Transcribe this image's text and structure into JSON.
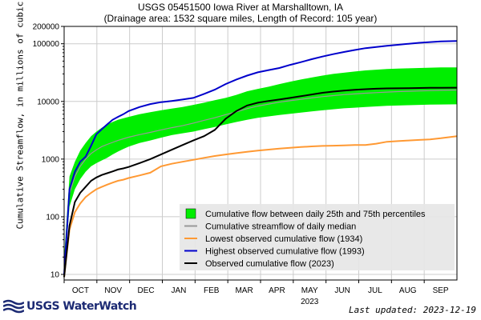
{
  "chart_data": {
    "type": "line",
    "title": "USGS 05451500 Iowa River at Marshalltown, IA",
    "subtitle": "(Drainage area: 1532 square miles, Length of Record: 105 year)",
    "ylabel": "Cumulative Streamflow, in millions of cubic feet",
    "xlabel": "",
    "y_scale": "log",
    "ylim": [
      8,
      200000
    ],
    "y_ticks": [
      10,
      100,
      1000,
      10000,
      100000,
      200000
    ],
    "y_tick_labels": [
      "10",
      "100",
      "1000",
      "10000",
      "100000",
      "200000"
    ],
    "x_ticks": [
      "OCT",
      "NOV",
      "DEC",
      "JAN",
      "FEB",
      "MAR",
      "APR",
      "MAY",
      "JUN",
      "JUL",
      "AUG",
      "SEP"
    ],
    "x_year_label": "2023",
    "grid": true,
    "legend_placement": "bottom-right",
    "x_days": [
      0,
      5,
      10,
      15,
      20,
      25,
      30,
      35,
      40,
      45,
      50,
      55,
      60,
      70,
      80,
      90,
      100,
      110,
      120,
      130,
      140,
      150,
      160,
      170,
      180,
      190,
      200,
      210,
      220,
      230,
      240,
      250,
      260,
      270,
      280,
      290,
      300,
      310,
      320,
      330,
      340,
      350,
      365
    ],
    "series": [
      {
        "name": "Cumulative flow between daily 25th and 75th percentiles",
        "kind": "band",
        "color": "#00ee00",
        "lower": [
          10,
          150,
          300,
          450,
          600,
          750,
          850,
          950,
          1050,
          1200,
          1350,
          1500,
          1650,
          1900,
          2100,
          2350,
          2600,
          2800,
          3000,
          3300,
          3600,
          4000,
          4400,
          4800,
          5200,
          5500,
          5800,
          6100,
          6400,
          6700,
          7000,
          7300,
          7600,
          7800,
          8000,
          8200,
          8400,
          8500,
          8600,
          8700,
          8800,
          8850,
          8900
        ],
        "upper": [
          20,
          500,
          900,
          1400,
          1900,
          2500,
          3000,
          3500,
          4000,
          4400,
          4800,
          5100,
          5400,
          6000,
          6500,
          7000,
          7500,
          8000,
          8700,
          9500,
          10500,
          11500,
          13000,
          15000,
          16500,
          18000,
          20000,
          22000,
          24000,
          26000,
          28000,
          30000,
          31500,
          33000,
          34500,
          35500,
          36500,
          37000,
          37500,
          38000,
          38500,
          38800,
          39000
        ]
      },
      {
        "name": "Cumulative streamflow of daily median",
        "kind": "line",
        "color": "#999999",
        "values": [
          12,
          250,
          500,
          750,
          1000,
          1250,
          1450,
          1650,
          1800,
          1950,
          2100,
          2250,
          2400,
          2650,
          2900,
          3200,
          3500,
          3800,
          4200,
          4700,
          5200,
          5900,
          6600,
          7500,
          8300,
          9000,
          9700,
          10300,
          10900,
          11500,
          12100,
          12600,
          13100,
          13500,
          13900,
          14200,
          14500,
          14800,
          15000,
          15200,
          15400,
          15600,
          15800
        ]
      },
      {
        "name": "Lowest observed cumulative flow (1934)",
        "kind": "line",
        "color": "#ff9933",
        "values": [
          9,
          60,
          120,
          170,
          220,
          260,
          300,
          330,
          360,
          390,
          420,
          440,
          470,
          520,
          580,
          750,
          830,
          900,
          970,
          1050,
          1130,
          1200,
          1270,
          1340,
          1400,
          1460,
          1520,
          1570,
          1620,
          1660,
          1690,
          1710,
          1730,
          1750,
          1760,
          1850,
          2000,
          2050,
          2100,
          2150,
          2200,
          2300,
          2500
        ]
      },
      {
        "name": "Highest observed cumulative flow (1993)",
        "kind": "line",
        "color": "#0000cc",
        "values": [
          10,
          300,
          600,
          900,
          1100,
          1700,
          2700,
          3300,
          4000,
          4800,
          5400,
          6000,
          6800,
          8000,
          9000,
          9700,
          10200,
          10800,
          11500,
          13500,
          16000,
          20000,
          24000,
          28000,
          32000,
          35000,
          38000,
          43000,
          48000,
          54000,
          60000,
          66000,
          72000,
          78000,
          84000,
          88000,
          92000,
          96000,
          100000,
          104000,
          107000,
          110000,
          112000
        ]
      },
      {
        "name": "Observed cumulative flow (2023)",
        "kind": "line",
        "color": "#000000",
        "values": [
          9,
          70,
          180,
          260,
          330,
          420,
          480,
          530,
          570,
          610,
          660,
          690,
          730,
          850,
          1000,
          1200,
          1450,
          1750,
          2100,
          2500,
          3200,
          5000,
          6800,
          8500,
          9500,
          10200,
          10800,
          11500,
          12300,
          13200,
          14100,
          14800,
          15400,
          15900,
          16300,
          16600,
          16800,
          16900,
          17000,
          17100,
          17200,
          17250,
          17300
        ]
      }
    ]
  },
  "footer": {
    "logo_text": "USGS WaterWatch",
    "last_updated": "Last updated: 2023-12-19"
  }
}
